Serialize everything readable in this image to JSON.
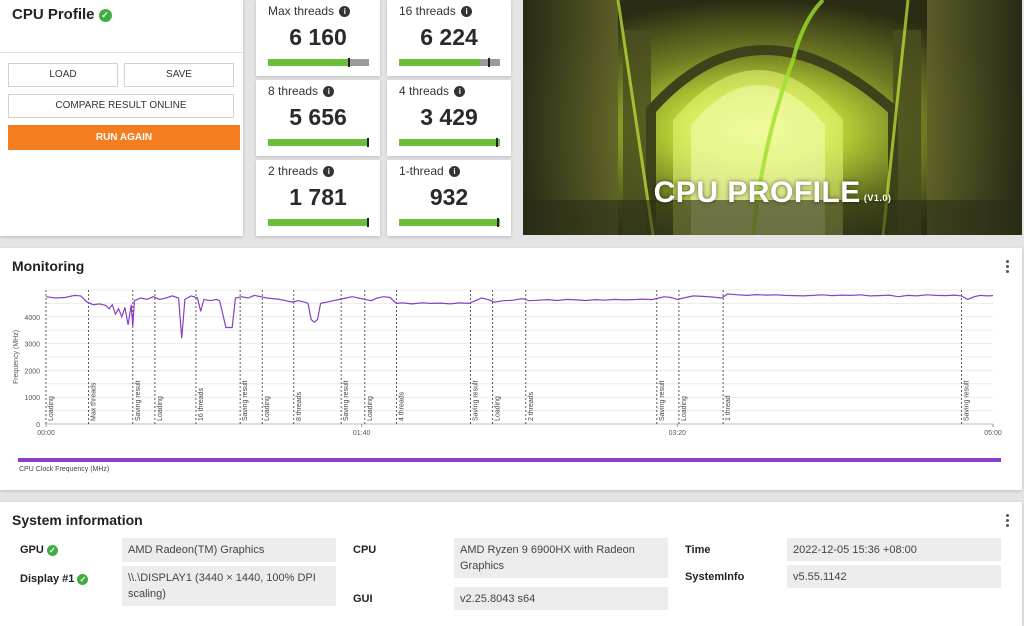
{
  "left_panel": {
    "title": "CPU Profile",
    "buttons": {
      "load": "LOAD",
      "save": "SAVE",
      "compare": "COMPARE RESULT ONLINE",
      "run_again": "RUN AGAIN"
    }
  },
  "scores": [
    {
      "label": "Max threads",
      "value": "6 160",
      "bar_fill": 0.8,
      "marker": 0.8
    },
    {
      "label": "16 threads",
      "value": "6 224",
      "bar_fill": 0.8,
      "marker": 0.89
    },
    {
      "label": "8 threads",
      "value": "5 656",
      "bar_fill": 1.0,
      "marker": 0.99
    },
    {
      "label": "4 threads",
      "value": "3 429",
      "bar_fill": 1.0,
      "marker": 0.97
    },
    {
      "label": "2 threads",
      "value": "1 781",
      "bar_fill": 1.0,
      "marker": 0.99
    },
    {
      "label": "1-thread",
      "value": "932",
      "bar_fill": 1.0,
      "marker": 0.98
    }
  ],
  "hero": {
    "title": "CPU PROFILE",
    "version": "(V1.0)"
  },
  "monitoring": {
    "title": "Monitoring",
    "legend": "CPU Clock Frequency (MHz)",
    "accent": "#8a3fc6"
  },
  "chart_data": {
    "type": "line",
    "ylabel": "Frequency (MHz)",
    "ylim": [
      0,
      5000
    ],
    "yticks": [
      "0",
      "1000",
      "2000",
      "3000",
      "4000"
    ],
    "xlim": [
      0,
      300
    ],
    "xticks": [
      {
        "t": 0,
        "label": "00:00"
      },
      {
        "t": 100,
        "label": "01:40"
      },
      {
        "t": 200,
        "label": "03:20"
      },
      {
        "t": 300,
        "label": "05:00"
      }
    ],
    "events": [
      {
        "t": 0,
        "label": "Loading"
      },
      {
        "t": 13.5,
        "label": "Max threads"
      },
      {
        "t": 27.5,
        "label": "Saving result"
      },
      {
        "t": 34.5,
        "label": "Loading"
      },
      {
        "t": 47.5,
        "label": "16 threads"
      },
      {
        "t": 61.5,
        "label": "Saving result"
      },
      {
        "t": 68.5,
        "label": "Loading"
      },
      {
        "t": 78.5,
        "label": "8 threads"
      },
      {
        "t": 93.5,
        "label": "Saving result"
      },
      {
        "t": 101,
        "label": "Loading"
      },
      {
        "t": 111,
        "label": "4 threads"
      },
      {
        "t": 134.5,
        "label": "Saving result"
      },
      {
        "t": 141.5,
        "label": "Loading"
      },
      {
        "t": 152,
        "label": "2 threads"
      },
      {
        "t": 193.5,
        "label": "Saving result"
      },
      {
        "t": 200.5,
        "label": "Loading"
      },
      {
        "t": 214.5,
        "label": "1 thread"
      },
      {
        "t": 290,
        "label": "Saving result"
      }
    ],
    "series": [
      {
        "color": "#8a3fc6",
        "points": [
          [
            0,
            4750
          ],
          [
            3,
            4700
          ],
          [
            6,
            4720
          ],
          [
            9,
            4800
          ],
          [
            11,
            4780
          ],
          [
            13,
            4550
          ],
          [
            15,
            4450
          ],
          [
            17,
            4480
          ],
          [
            19,
            4420
          ],
          [
            20,
            4300
          ],
          [
            21,
            4450
          ],
          [
            22,
            4100
          ],
          [
            23,
            4300
          ],
          [
            24,
            4000
          ],
          [
            25,
            4350
          ],
          [
            26,
            3700
          ],
          [
            27,
            4450
          ],
          [
            27.5,
            3650
          ],
          [
            28,
            4600
          ],
          [
            30,
            4700
          ],
          [
            32,
            4650
          ],
          [
            34,
            4750
          ],
          [
            36,
            4650
          ],
          [
            38,
            4700
          ],
          [
            40,
            4780
          ],
          [
            42,
            4700
          ],
          [
            43,
            3200
          ],
          [
            44,
            4650
          ],
          [
            46,
            4780
          ],
          [
            48,
            4700
          ],
          [
            49,
            4200
          ],
          [
            50,
            4650
          ],
          [
            52,
            4600
          ],
          [
            54,
            4650
          ],
          [
            55,
            4600
          ],
          [
            56,
            4100
          ],
          [
            57,
            3600
          ],
          [
            58,
            3600
          ],
          [
            59,
            3600
          ],
          [
            60,
            4700
          ],
          [
            62,
            4750
          ],
          [
            64,
            4700
          ],
          [
            66,
            4800
          ],
          [
            68,
            4750
          ],
          [
            70,
            4700
          ],
          [
            72,
            4680
          ],
          [
            74,
            4650
          ],
          [
            76,
            4600
          ],
          [
            78,
            4550
          ],
          [
            80,
            4600
          ],
          [
            82,
            4550
          ],
          [
            83,
            4500
          ],
          [
            84,
            3900
          ],
          [
            85,
            3800
          ],
          [
            86,
            3900
          ],
          [
            87,
            4500
          ],
          [
            89,
            4550
          ],
          [
            91,
            4600
          ],
          [
            93,
            4650
          ],
          [
            95,
            4700
          ],
          [
            97,
            4750
          ],
          [
            99,
            4700
          ],
          [
            101,
            4650
          ],
          [
            103,
            4600
          ],
          [
            105,
            4700
          ],
          [
            107,
            4750
          ],
          [
            109,
            4720
          ],
          [
            111,
            4500
          ],
          [
            113,
            4520
          ],
          [
            116,
            4480
          ],
          [
            119,
            4520
          ],
          [
            122,
            4500
          ],
          [
            125,
            4510
          ],
          [
            128,
            4480
          ],
          [
            131,
            4520
          ],
          [
            134,
            4500
          ],
          [
            136,
            4600
          ],
          [
            138,
            4700
          ],
          [
            140,
            4650
          ],
          [
            142,
            4550
          ],
          [
            145,
            4600
          ],
          [
            148,
            4620
          ],
          [
            151,
            4680
          ],
          [
            153,
            4600
          ],
          [
            156,
            4620
          ],
          [
            159,
            4640
          ],
          [
            162,
            4610
          ],
          [
            165,
            4650
          ],
          [
            168,
            4630
          ],
          [
            171,
            4610
          ],
          [
            174,
            4640
          ],
          [
            177,
            4620
          ],
          [
            180,
            4650
          ],
          [
            183,
            4630
          ],
          [
            186,
            4640
          ],
          [
            189,
            4660
          ],
          [
            192,
            4640
          ],
          [
            194,
            4700
          ],
          [
            196,
            4750
          ],
          [
            198,
            4720
          ],
          [
            200,
            4650
          ],
          [
            202,
            4700
          ],
          [
            205,
            4780
          ],
          [
            208,
            4760
          ],
          [
            211,
            4740
          ],
          [
            214,
            4700
          ],
          [
            216,
            4850
          ],
          [
            219,
            4820
          ],
          [
            222,
            4800
          ],
          [
            225,
            4830
          ],
          [
            228,
            4810
          ],
          [
            231,
            4820
          ],
          [
            234,
            4800
          ],
          [
            237,
            4790
          ],
          [
            240,
            4780
          ],
          [
            243,
            4800
          ],
          [
            246,
            4820
          ],
          [
            249,
            4790
          ],
          [
            252,
            4810
          ],
          [
            255,
            4800
          ],
          [
            258,
            4820
          ],
          [
            261,
            4780
          ],
          [
            264,
            4790
          ],
          [
            267,
            4810
          ],
          [
            270,
            4750
          ],
          [
            273,
            4800
          ],
          [
            276,
            4780
          ],
          [
            279,
            4820
          ],
          [
            282,
            4800
          ],
          [
            285,
            4790
          ],
          [
            288,
            4810
          ],
          [
            290,
            4780
          ],
          [
            292,
            4650
          ],
          [
            294,
            4750
          ],
          [
            296,
            4800
          ],
          [
            298,
            4780
          ],
          [
            300,
            4790
          ]
        ]
      }
    ]
  },
  "system_info": {
    "title": "System information",
    "gpu": {
      "label": "GPU",
      "value": "AMD Radeon(TM) Graphics"
    },
    "display": {
      "label": "Display #1",
      "value": "\\\\.\\DISPLAY1 (3440 × 1440, 100% DPI scaling)"
    },
    "cpu": {
      "label": "CPU",
      "value": "AMD Ryzen 9 6900HX with Radeon Graphics"
    },
    "gui": {
      "label": "GUI",
      "value": "v2.25.8043 s64"
    },
    "time": {
      "label": "Time",
      "value": "2022-12-05 15:36 +08:00"
    },
    "systeminfo": {
      "label": "SystemInfo",
      "value": "v5.55.1142"
    }
  }
}
